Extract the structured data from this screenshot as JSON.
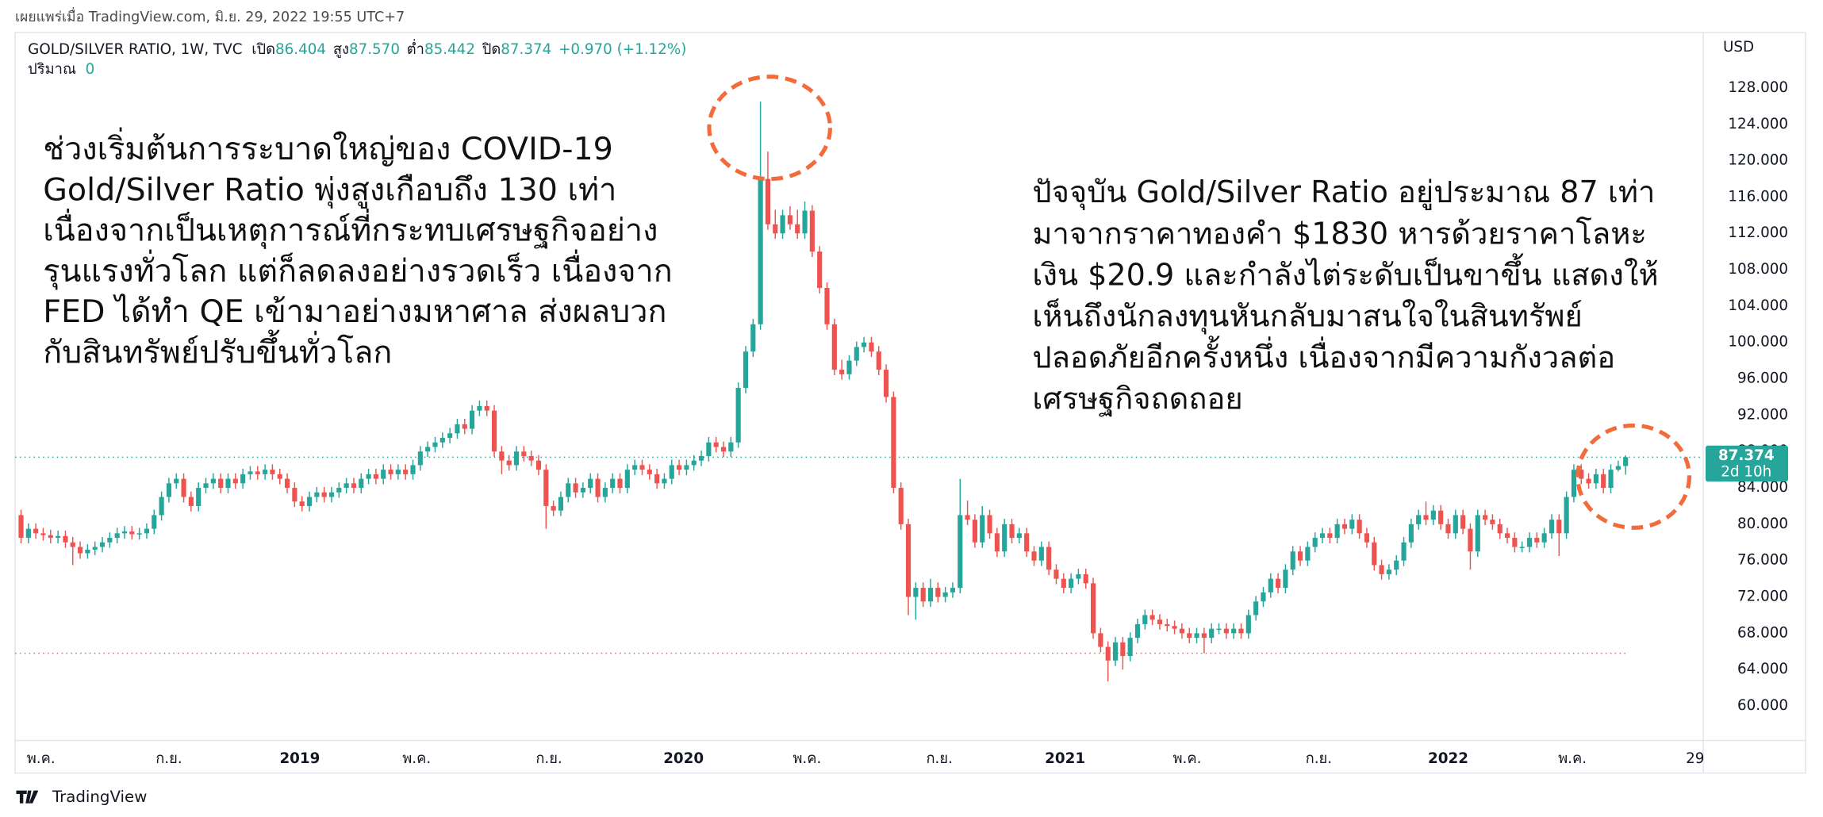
{
  "published": "เผยแพร่เมื่อ TradingView.com, มิ.ย. 29, 2022 19:55 UTC+7",
  "brand": "TradingView",
  "chart_data": {
    "type": "candlestick",
    "title": "GOLD/SILVER RATIO, 1W, TVC",
    "ohlc_names": [
      "เปิด",
      "สูง",
      "ต่ำ",
      "ปิด"
    ],
    "ohlc_labels": [
      "86.404",
      "87.570",
      "85.442",
      "87.374"
    ],
    "change_label": "+0.970 (+1.12%)",
    "volume_name": "ปริมาณ",
    "volume_value": 0,
    "currency": "USD",
    "last_price_label": "87.374",
    "countdown": "2d 10h",
    "up_color": "#26a69a",
    "down_color": "#ef5350",
    "grid": false,
    "low_line": 65.8,
    "annotations": [
      [
        "ช่วงเริ่มต้นการระบาดใหญ่ของ COVID-19",
        "Gold/Silver Ratio พุ่งสูงเกือบถึง 130 เท่า",
        "เนื่องจากเป็นเหตุการณ์ที่กระทบเศรษฐกิจอย่าง",
        "รุนแรงทั่วโลก แต่ก็ลดลงอย่างรวดเร็ว เนื่องจาก",
        "FED ได้ทำ QE เข้ามาอย่างมหาศาล ส่งผลบวก",
        "กับสินทรัพย์ปรับขึ้นทั่วโลก"
      ],
      [
        "ปัจจุบัน Gold/Silver Ratio อยู่ประมาณ 87 เท่า",
        "มาจากราคาทองคำ $1830 หารด้วยราคาโลหะ",
        "เงิน $20.9 และกำลังไต่ระดับเป็นขาขึ้น แสดงให้",
        "เห็นถึงนักลงทุนหันกลับมาสนใจในสินทรัพย์",
        "ปลอดภัยอีกครั้งหนึ่ง เนื่องจากมีความกังวลต่อ",
        "เศรษฐกิจถดถอย"
      ]
    ],
    "xlim": [
      -0.8,
      227.5
    ],
    "xticks": [
      {
        "value": 2.7,
        "label": "พ.ค."
      },
      {
        "value": 20,
        "label": "ก.ย."
      },
      {
        "value": 37.7,
        "label": "2019"
      },
      {
        "value": 53.5,
        "label": "พ.ค."
      },
      {
        "value": 71.4,
        "label": "ก.ย."
      },
      {
        "value": 89.6,
        "label": "2020"
      },
      {
        "value": 106.3,
        "label": "พ.ค."
      },
      {
        "value": 124.2,
        "label": "ก.ย."
      },
      {
        "value": 141.2,
        "label": "2021"
      },
      {
        "value": 157.7,
        "label": "พ.ค."
      },
      {
        "value": 175.5,
        "label": "ก.ย."
      },
      {
        "value": 193,
        "label": "2022"
      },
      {
        "value": 209.8,
        "label": "พ.ค."
      },
      {
        "value": 226.4,
        "label": "29"
      }
    ],
    "ylim": [
      56.2,
      134.1
    ],
    "yticks": [
      {
        "value": 60,
        "label": "60.000"
      },
      {
        "value": 64,
        "label": "64.000"
      },
      {
        "value": 68,
        "label": "68.000"
      },
      {
        "value": 72,
        "label": "72.000"
      },
      {
        "value": 76,
        "label": "76.000"
      },
      {
        "value": 80,
        "label": "80.000"
      },
      {
        "value": 84,
        "label": "84.000"
      },
      {
        "value": 88,
        "label": "88.000"
      },
      {
        "value": 92,
        "label": "92.000"
      },
      {
        "value": 96,
        "label": "96.000"
      },
      {
        "value": 100,
        "label": "100.000"
      },
      {
        "value": 104,
        "label": "104.000"
      },
      {
        "value": 108,
        "label": "108.000"
      },
      {
        "value": 112,
        "label": "112.000"
      },
      {
        "value": 116,
        "label": "116.000"
      },
      {
        "value": 120,
        "label": "120.000"
      },
      {
        "value": 124,
        "label": "124.000"
      },
      {
        "value": 128,
        "label": "128.000"
      }
    ],
    "candles": [
      [
        81,
        81.6,
        77.9,
        78.5
      ],
      [
        78.5,
        80.1,
        77.9,
        79.5
      ],
      [
        79.5,
        80.1,
        78.4,
        79
      ],
      [
        79,
        79.6,
        78.2,
        78.8
      ],
      [
        78.8,
        79.4,
        77.9,
        78.5
      ],
      [
        78.5,
        79.3,
        77.9,
        78.7
      ],
      [
        78.7,
        79.3,
        77.4,
        78
      ],
      [
        78,
        78.6,
        75.5,
        77.5
      ],
      [
        77.5,
        78.1,
        76.2,
        76.8
      ],
      [
        76.8,
        77.8,
        76.2,
        77.2
      ],
      [
        77.2,
        78.1,
        76.6,
        77.5
      ],
      [
        77.5,
        78.6,
        76.9,
        78
      ],
      [
        78,
        79.1,
        77.4,
        78.5
      ],
      [
        78.5,
        79.6,
        77.9,
        79
      ],
      [
        79,
        79.8,
        78.4,
        79.2
      ],
      [
        79.2,
        79.8,
        78.3,
        78.9
      ],
      [
        78.9,
        79.6,
        78.3,
        79
      ],
      [
        79,
        80.1,
        78.4,
        79.5
      ],
      [
        79.5,
        81.6,
        78.9,
        81
      ],
      [
        81,
        83.6,
        80.4,
        83
      ],
      [
        83,
        85.1,
        82.4,
        84.5
      ],
      [
        84.5,
        85.6,
        83.9,
        85
      ],
      [
        85,
        85.6,
        82.4,
        83
      ],
      [
        83,
        83.6,
        81.4,
        82
      ],
      [
        82,
        84.6,
        81.4,
        84
      ],
      [
        84,
        85.1,
        83.4,
        84.5
      ],
      [
        84.5,
        85.6,
        83.9,
        85
      ],
      [
        85,
        85.6,
        83.4,
        84
      ],
      [
        84,
        85.6,
        83.4,
        85
      ],
      [
        85,
        85.6,
        83.9,
        84.5
      ],
      [
        84.5,
        86.1,
        83.9,
        85.5
      ],
      [
        85.5,
        86.4,
        84.9,
        85.8
      ],
      [
        85.8,
        86.4,
        84.9,
        85.5
      ],
      [
        85.5,
        86.6,
        84.9,
        86
      ],
      [
        86,
        86.6,
        84.9,
        85.5
      ],
      [
        85.5,
        86.1,
        84.4,
        85
      ],
      [
        85,
        85.6,
        83.4,
        84
      ],
      [
        84,
        84.6,
        81.9,
        82.5
      ],
      [
        82.5,
        83.1,
        81.4,
        82
      ],
      [
        82,
        83.6,
        81.4,
        83
      ],
      [
        83,
        84.1,
        82.4,
        83.5
      ],
      [
        83.5,
        84.1,
        82.4,
        83
      ],
      [
        83,
        84.1,
        82.4,
        83.5
      ],
      [
        83.5,
        84.6,
        82.9,
        84
      ],
      [
        84,
        85.1,
        83.4,
        84.5
      ],
      [
        84.5,
        85.1,
        83.4,
        84
      ],
      [
        84,
        85.6,
        83.4,
        85
      ],
      [
        85,
        86.1,
        84.4,
        85.5
      ],
      [
        85.5,
        86.1,
        84.4,
        85
      ],
      [
        85,
        86.6,
        84.4,
        86
      ],
      [
        86,
        86.6,
        84.9,
        85.5
      ],
      [
        85.5,
        86.6,
        84.9,
        86
      ],
      [
        86,
        86.6,
        84.9,
        85.5
      ],
      [
        85.5,
        87.1,
        84.9,
        86.5
      ],
      [
        86.5,
        88.6,
        85.9,
        88
      ],
      [
        88,
        89.1,
        87.4,
        88.5
      ],
      [
        88.5,
        89.6,
        87.9,
        89
      ],
      [
        89,
        90.1,
        88.4,
        89.5
      ],
      [
        89.5,
        90.6,
        88.9,
        90
      ],
      [
        90,
        91.6,
        89.4,
        91
      ],
      [
        91,
        91.6,
        89.9,
        90.5
      ],
      [
        90.5,
        93.1,
        89.9,
        92.5
      ],
      [
        92.5,
        93.6,
        91.9,
        93
      ],
      [
        93,
        93.6,
        91.9,
        92.5
      ],
      [
        92.5,
        93.1,
        87.4,
        88
      ],
      [
        88,
        88.6,
        85.5,
        87
      ],
      [
        87,
        87.6,
        85.9,
        86.5
      ],
      [
        86.5,
        88.6,
        85.9,
        88
      ],
      [
        88,
        88.6,
        86.9,
        87.5
      ],
      [
        87.5,
        88.1,
        86.4,
        87
      ],
      [
        87,
        87.6,
        85.4,
        86
      ],
      [
        86,
        86.6,
        79.5,
        82
      ],
      [
        82,
        82.6,
        80.9,
        81.5
      ],
      [
        81.5,
        83.6,
        80.9,
        83
      ],
      [
        83,
        85.1,
        82.4,
        84.5
      ],
      [
        84.5,
        85.1,
        82.9,
        83.5
      ],
      [
        83.5,
        84.6,
        82.9,
        84
      ],
      [
        84,
        85.6,
        83.4,
        85
      ],
      [
        85,
        85.6,
        82.4,
        83
      ],
      [
        83,
        84.6,
        82.4,
        84
      ],
      [
        84,
        85.6,
        83.4,
        85
      ],
      [
        85,
        85.6,
        83.4,
        84
      ],
      [
        84,
        86.6,
        83.4,
        86
      ],
      [
        86,
        87.1,
        85.4,
        86.5
      ],
      [
        86.5,
        87.1,
        85.4,
        86
      ],
      [
        86,
        86.6,
        84.9,
        85.5
      ],
      [
        85.5,
        86.1,
        83.9,
        84.5
      ],
      [
        84.5,
        85.6,
        83.9,
        85
      ],
      [
        85,
        87.1,
        84.4,
        86.5
      ],
      [
        86.5,
        87.1,
        85.4,
        86
      ],
      [
        86,
        87.1,
        85.4,
        86.5
      ],
      [
        86.5,
        87.6,
        85.9,
        87
      ],
      [
        87,
        88.1,
        86.4,
        87.5
      ],
      [
        87.5,
        89.6,
        86.9,
        89
      ],
      [
        89,
        89.6,
        87.9,
        88.5
      ],
      [
        88.5,
        89.1,
        87.4,
        88
      ],
      [
        88,
        89.6,
        87.4,
        89
      ],
      [
        89,
        95.6,
        88.4,
        95
      ],
      [
        95,
        99.6,
        94.4,
        99
      ],
      [
        99,
        102.6,
        98.4,
        102
      ],
      [
        102,
        126.5,
        101.4,
        118
      ],
      [
        118,
        121,
        112.4,
        113
      ],
      [
        113,
        114.6,
        111.4,
        112
      ],
      [
        112,
        114.6,
        111.4,
        114
      ],
      [
        114,
        115,
        112.4,
        113
      ],
      [
        113,
        114.6,
        111.4,
        112
      ],
      [
        112,
        115.5,
        111.4,
        114.5
      ],
      [
        114.5,
        115.1,
        109.4,
        110
      ],
      [
        110,
        110.6,
        105.4,
        106
      ],
      [
        106,
        106.6,
        101.4,
        102
      ],
      [
        102,
        102.6,
        96.4,
        97
      ],
      [
        97,
        98.1,
        95.9,
        96.5
      ],
      [
        96.5,
        98.6,
        95.9,
        98
      ],
      [
        98,
        100.1,
        97.4,
        99.5
      ],
      [
        99.5,
        100.6,
        98.9,
        100
      ],
      [
        100,
        100.6,
        98.4,
        99
      ],
      [
        99,
        99.6,
        96.4,
        97
      ],
      [
        97,
        97.6,
        93.4,
        94
      ],
      [
        94,
        94.6,
        83.4,
        84
      ],
      [
        84,
        84.6,
        79.4,
        80
      ],
      [
        80,
        80.6,
        70,
        72
      ],
      [
        72,
        73.6,
        69.5,
        73
      ],
      [
        73,
        73.6,
        70.9,
        71.5
      ],
      [
        71.5,
        74,
        70.9,
        73
      ],
      [
        73,
        73.6,
        71.4,
        72
      ],
      [
        72,
        73.1,
        71.4,
        72.5
      ],
      [
        72.5,
        73.6,
        71.9,
        73
      ],
      [
        73,
        85,
        72.4,
        81
      ],
      [
        81,
        82.6,
        79.9,
        80.5
      ],
      [
        80.5,
        81.1,
        77.4,
        78
      ],
      [
        78,
        82,
        77.4,
        81
      ],
      [
        81,
        81.6,
        78.4,
        79
      ],
      [
        79,
        79.6,
        76.4,
        77
      ],
      [
        77,
        80.6,
        76.4,
        80
      ],
      [
        80,
        80.6,
        77.9,
        78.5
      ],
      [
        78.5,
        79.6,
        77.9,
        79
      ],
      [
        79,
        79.6,
        76.4,
        77
      ],
      [
        77,
        77.6,
        75.4,
        76
      ],
      [
        76,
        78.1,
        75.4,
        77.5
      ],
      [
        77.5,
        78.1,
        74.4,
        75
      ],
      [
        75,
        75.6,
        73.4,
        74
      ],
      [
        74,
        74.6,
        72.4,
        73
      ],
      [
        73,
        74.6,
        72.4,
        74
      ],
      [
        74,
        75.1,
        73.4,
        74.5
      ],
      [
        74.5,
        75.1,
        72.9,
        73.5
      ],
      [
        73.5,
        74.1,
        67.4,
        68
      ],
      [
        68,
        68.6,
        65.9,
        66.5
      ],
      [
        66.5,
        67.1,
        62.7,
        65
      ],
      [
        65,
        67.6,
        64.4,
        67
      ],
      [
        67,
        67.6,
        64,
        65.5
      ],
      [
        65.5,
        68.1,
        64.9,
        67.5
      ],
      [
        67.5,
        69.6,
        66.9,
        69
      ],
      [
        69,
        70.6,
        68.4,
        70
      ],
      [
        70,
        70.6,
        68.9,
        69.5
      ],
      [
        69.5,
        70.1,
        68.4,
        69
      ],
      [
        69,
        69.6,
        68.2,
        68.8
      ],
      [
        68.8,
        69.4,
        67.9,
        68.5
      ],
      [
        68.5,
        69.1,
        67.4,
        68
      ],
      [
        68,
        68.6,
        66.9,
        67.5
      ],
      [
        67.5,
        68.6,
        66.9,
        68
      ],
      [
        68,
        68.6,
        65.8,
        67.5
      ],
      [
        67.5,
        69.1,
        66.9,
        68.5
      ],
      [
        68.5,
        69.1,
        67.9,
        68.5
      ],
      [
        68.5,
        69.1,
        67.4,
        68
      ],
      [
        68,
        69.1,
        67.4,
        68.5
      ],
      [
        68.5,
        69.1,
        67.4,
        68
      ],
      [
        68,
        70.6,
        67.4,
        70
      ],
      [
        70,
        72.1,
        69.4,
        71.5
      ],
      [
        71.5,
        73.1,
        70.9,
        72.5
      ],
      [
        72.5,
        74.6,
        71.9,
        74
      ],
      [
        74,
        74.6,
        72.4,
        73
      ],
      [
        73,
        75.6,
        72.4,
        75
      ],
      [
        75,
        77.6,
        74.4,
        77
      ],
      [
        77,
        77.6,
        75.4,
        76
      ],
      [
        76,
        78.1,
        75.4,
        77.5
      ],
      [
        77.5,
        79.1,
        76.9,
        78.5
      ],
      [
        78.5,
        79.6,
        77.9,
        79
      ],
      [
        79,
        79.6,
        77.9,
        78.5
      ],
      [
        78.5,
        80.6,
        77.9,
        80
      ],
      [
        80,
        80.6,
        78.9,
        79.5
      ],
      [
        79.5,
        81.1,
        78.9,
        80.5
      ],
      [
        80.5,
        81.1,
        78.4,
        79
      ],
      [
        79,
        79.6,
        77.4,
        78
      ],
      [
        78,
        78.6,
        74.9,
        75.5
      ],
      [
        75.5,
        76.1,
        73.9,
        74.5
      ],
      [
        74.5,
        75.6,
        73.9,
        75
      ],
      [
        75,
        76.6,
        74.4,
        76
      ],
      [
        76,
        78.6,
        75.4,
        78
      ],
      [
        78,
        80.6,
        77.4,
        80
      ],
      [
        80,
        81.6,
        79.4,
        81
      ],
      [
        81,
        82.5,
        79.9,
        80.5
      ],
      [
        80.5,
        82.1,
        79.9,
        81.5
      ],
      [
        81.5,
        82.1,
        79.4,
        80
      ],
      [
        80,
        80.6,
        78.4,
        79
      ],
      [
        79,
        81.6,
        78.4,
        81
      ],
      [
        81,
        81.6,
        78.9,
        79.5
      ],
      [
        79.5,
        80.1,
        75,
        77
      ],
      [
        77,
        81.6,
        76.4,
        81
      ],
      [
        81,
        81.6,
        79.9,
        80.5
      ],
      [
        80.5,
        81.1,
        79.4,
        80
      ],
      [
        80,
        80.6,
        78.4,
        79
      ],
      [
        79,
        79.6,
        77.9,
        78.5
      ],
      [
        78.5,
        79.1,
        76.9,
        77.5
      ],
      [
        77.5,
        78.1,
        76.9,
        77.5
      ],
      [
        77.5,
        79.1,
        76.9,
        78.5
      ],
      [
        78.5,
        79.1,
        77.4,
        78
      ],
      [
        78,
        79.6,
        77.4,
        79
      ],
      [
        79,
        81.1,
        78.4,
        80.5
      ],
      [
        80.5,
        81.1,
        76.5,
        79
      ],
      [
        79,
        83.6,
        78.4,
        83
      ],
      [
        83,
        86.6,
        82.4,
        86
      ],
      [
        86,
        86.6,
        84.4,
        85
      ],
      [
        85,
        85.6,
        83.9,
        84.5
      ],
      [
        84.5,
        86.1,
        83.9,
        85.5
      ],
      [
        85.5,
        86.1,
        83.4,
        84
      ],
      [
        84,
        86.6,
        83.4,
        86
      ],
      [
        86,
        87,
        85.8,
        86.4
      ],
      [
        86.404,
        87.57,
        85.442,
        87.374
      ]
    ]
  }
}
